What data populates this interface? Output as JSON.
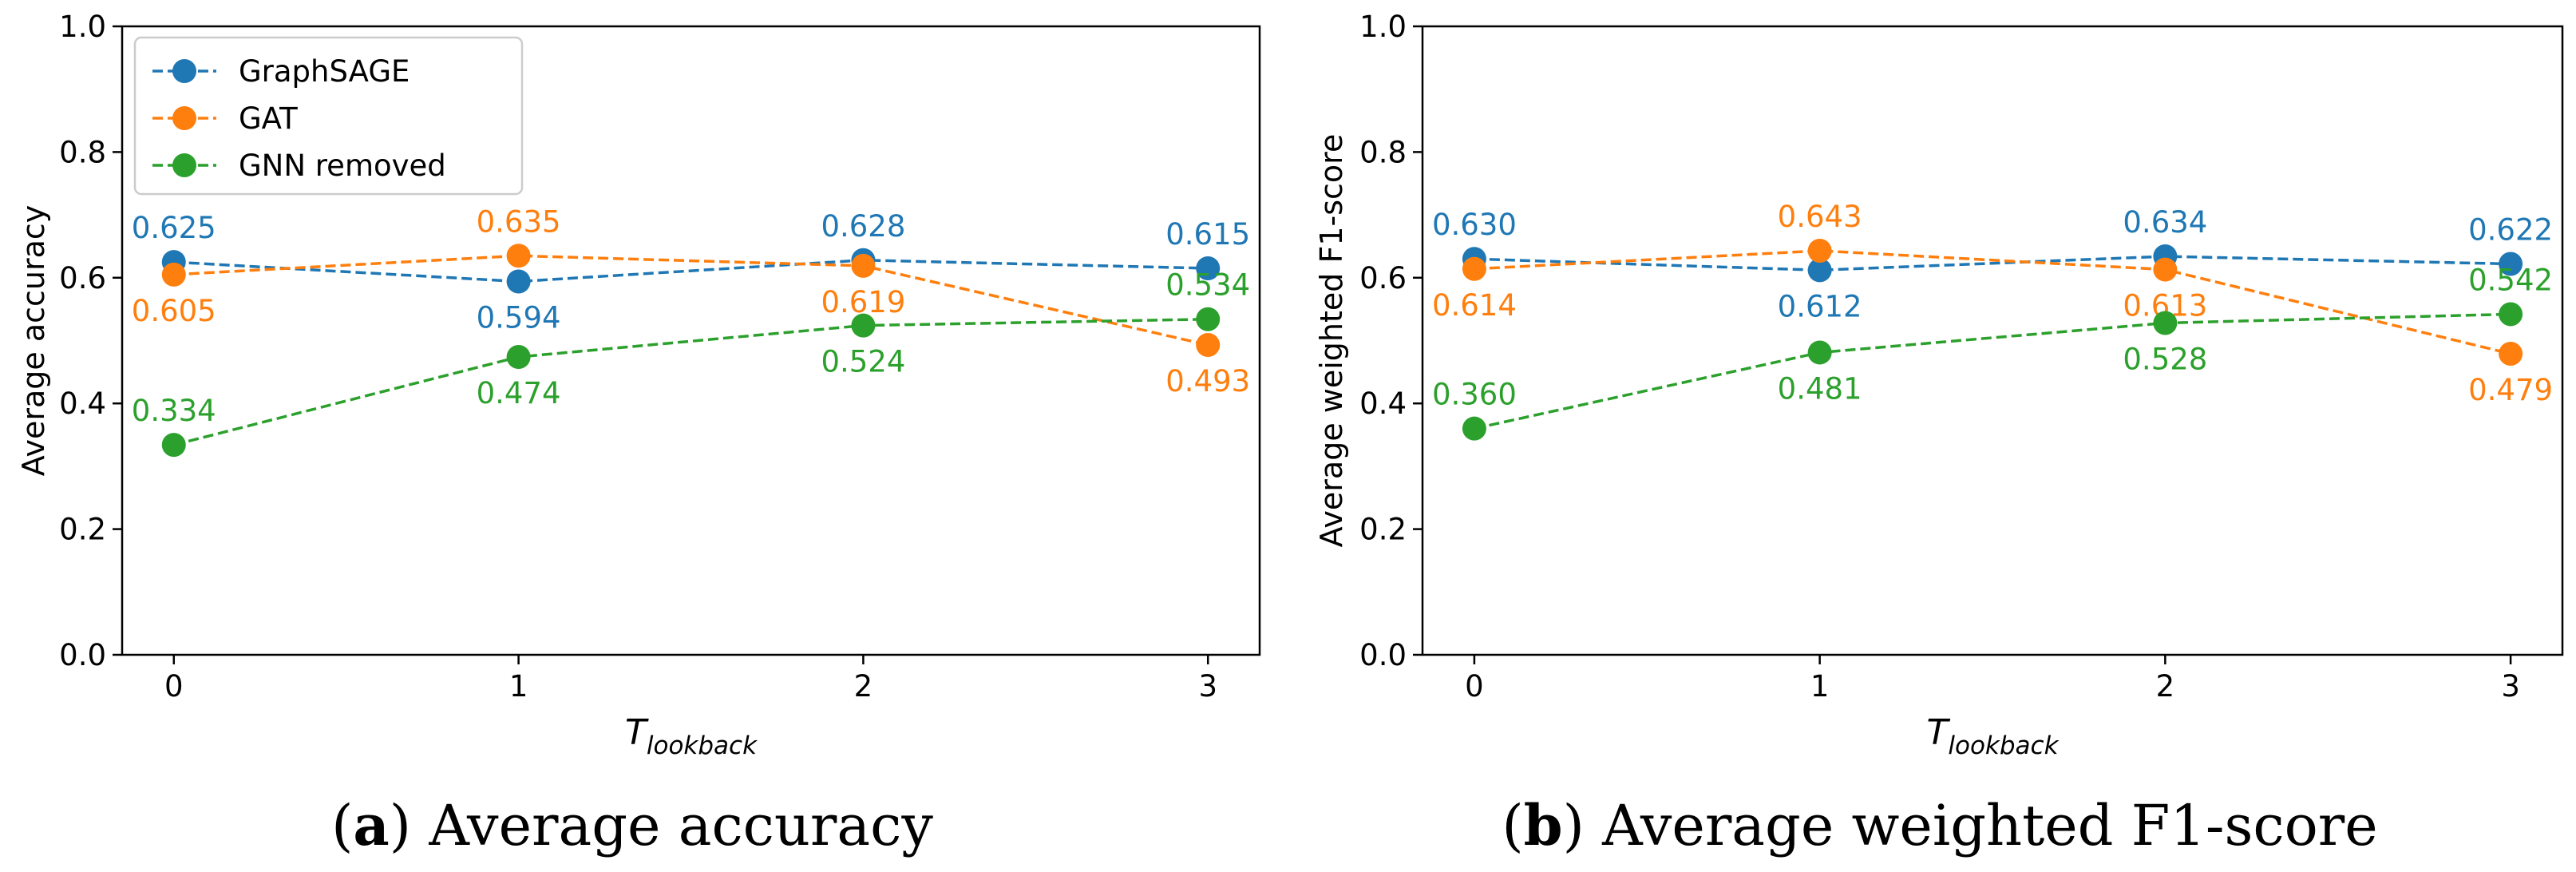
{
  "chart_data": [
    {
      "type": "line",
      "caption": {
        "letter": "a",
        "text": "Average accuracy"
      },
      "xlabel": {
        "main": "T",
        "sub": "lookback"
      },
      "ylabel": "Average accuracy",
      "x": [
        0,
        1,
        2,
        3
      ],
      "xticks": [
        "0",
        "1",
        "2",
        "3"
      ],
      "ylim": [
        0.0,
        1.0
      ],
      "yticks": [
        "0.0",
        "0.2",
        "0.4",
        "0.6",
        "0.8",
        "1.0"
      ],
      "grid": false,
      "legend": "top-left",
      "series": [
        {
          "name": "GraphSAGE",
          "color": "#1f77b4",
          "values": [
            0.625,
            0.594,
            0.628,
            0.615
          ],
          "labels": [
            "0.625",
            "0.594",
            "0.628",
            "0.615"
          ],
          "label_pos": [
            "above",
            "below",
            "above",
            "above"
          ]
        },
        {
          "name": "GAT",
          "color": "#ff7f0e",
          "values": [
            0.605,
            0.635,
            0.619,
            0.493
          ],
          "labels": [
            "0.605",
            "0.635",
            "0.619",
            "0.493"
          ],
          "label_pos": [
            "below",
            "above",
            "below",
            "below"
          ]
        },
        {
          "name": "GNN removed",
          "color": "#2ca02c",
          "values": [
            0.334,
            0.474,
            0.524,
            0.534
          ],
          "labels": [
            "0.334",
            "0.474",
            "0.524",
            "0.534"
          ],
          "label_pos": [
            "above",
            "below",
            "below",
            "above"
          ]
        }
      ]
    },
    {
      "type": "line",
      "caption": {
        "letter": "b",
        "text": "Average weighted F1-score"
      },
      "xlabel": {
        "main": "T",
        "sub": "lookback"
      },
      "ylabel": "Average weighted F1-score",
      "x": [
        0,
        1,
        2,
        3
      ],
      "xticks": [
        "0",
        "1",
        "2",
        "3"
      ],
      "ylim": [
        0.0,
        1.0
      ],
      "yticks": [
        "0.0",
        "0.2",
        "0.4",
        "0.6",
        "0.8",
        "1.0"
      ],
      "grid": false,
      "series": [
        {
          "name": "GraphSAGE",
          "color": "#1f77b4",
          "values": [
            0.63,
            0.612,
            0.634,
            0.622
          ],
          "labels": [
            "0.630",
            "0.612",
            "0.634",
            "0.622"
          ],
          "label_pos": [
            "above",
            "below",
            "above",
            "above"
          ]
        },
        {
          "name": "GAT",
          "color": "#ff7f0e",
          "values": [
            0.614,
            0.643,
            0.613,
            0.479
          ],
          "labels": [
            "0.614",
            "0.643",
            "0.613",
            "0.479"
          ],
          "label_pos": [
            "below",
            "above",
            "below",
            "below"
          ]
        },
        {
          "name": "GNN removed",
          "color": "#2ca02c",
          "values": [
            0.36,
            0.481,
            0.528,
            0.542
          ],
          "labels": [
            "0.360",
            "0.481",
            "0.528",
            "0.542"
          ],
          "label_pos": [
            "above",
            "below",
            "below",
            "above"
          ]
        }
      ]
    }
  ]
}
